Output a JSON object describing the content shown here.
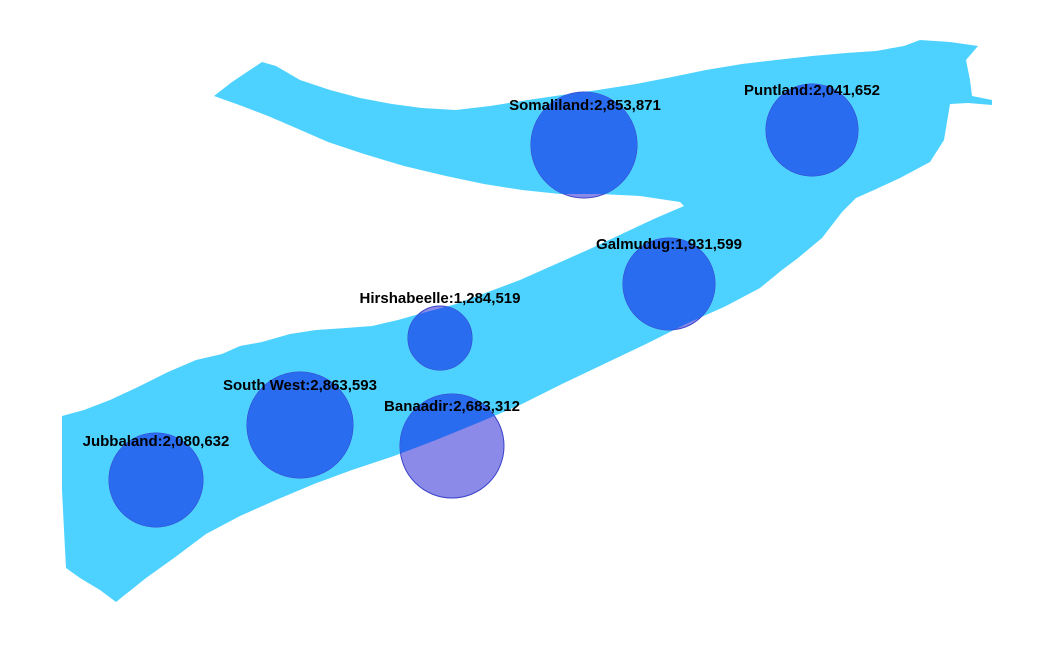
{
  "map": {
    "country": "Somalia",
    "colors": {
      "land": "#4dd2ff",
      "bubble_fill": "#2a6cf0",
      "bubble_fill_outside_land": "#8c8ae8",
      "bubble_stroke": "#3a42c8",
      "background": "#ffffff"
    },
    "regions": [
      {
        "name": "Somaliland",
        "population": "2,853,871",
        "label": "Somaliland:2,853,871",
        "value": 2853871
      },
      {
        "name": "Puntland",
        "population": "2,041,652",
        "label": "Puntland:2,041,652",
        "value": 2041652
      },
      {
        "name": "Galmudug",
        "population": "1,931,599",
        "label": "Galmudug:1,931,599",
        "value": 1931599
      },
      {
        "name": "Hirshabeelle",
        "population": "1,284,519",
        "label": "Hirshabeelle:1,284,519",
        "value": 1284519
      },
      {
        "name": "South West",
        "population": "2,863,593",
        "label": "South West:2,863,593",
        "value": 2863593
      },
      {
        "name": "Banaadir",
        "population": "2,683,312",
        "label": "Banaadir:2,683,312",
        "value": 2683312
      },
      {
        "name": "Jubbaland",
        "population": "2,080,632",
        "label": "Jubbaland:2,080,632",
        "value": 2080632
      }
    ]
  }
}
